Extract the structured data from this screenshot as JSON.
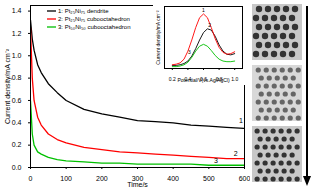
{
  "chart_data": [
    {
      "type": "line",
      "x_label": "Time/s",
      "y_label": "Current density/mA cm⁻²",
      "x": [
        0,
        5,
        10,
        20,
        30,
        50,
        75,
        100,
        150,
        200,
        250,
        300,
        350,
        400,
        450,
        500,
        550,
        600
      ],
      "series": [
        {
          "name": "1: Pt₂₅Ni₇₅ dendrite",
          "color": "#000000",
          "values": [
            1.32,
            1.15,
            1.05,
            0.92,
            0.85,
            0.75,
            0.67,
            0.6,
            0.52,
            0.48,
            0.45,
            0.42,
            0.41,
            0.4,
            0.38,
            0.37,
            0.36,
            0.35
          ]
        },
        {
          "name": "2: Pt₂₅Ni₇₅ cubooctahedron",
          "color": "#ff0000",
          "values": [
            1.25,
            0.8,
            0.6,
            0.45,
            0.38,
            0.3,
            0.25,
            0.22,
            0.18,
            0.16,
            0.14,
            0.13,
            0.12,
            0.11,
            0.1,
            0.09,
            0.08,
            0.08
          ]
        },
        {
          "name": "3: Pt₅₀Ni₅₀ cubooctahedron",
          "color": "#00c000",
          "values": [
            0.6,
            0.3,
            0.2,
            0.14,
            0.12,
            0.09,
            0.07,
            0.06,
            0.05,
            0.04,
            0.04,
            0.03,
            0.03,
            0.03,
            0.03,
            0.02,
            0.02,
            0.02
          ]
        }
      ],
      "xlim": [
        0,
        600
      ],
      "xticks": [
        0,
        100,
        200,
        300,
        400,
        500,
        600
      ],
      "ylim": [
        0,
        1.45
      ],
      "yticks": [
        {
          "value": 0,
          "label": "0.0"
        },
        {
          "value": 0.2,
          "label": "0.2"
        },
        {
          "value": 0.4,
          "label": "0.4"
        },
        {
          "value": 0.6,
          "label": "0.6"
        },
        {
          "value": 0.8,
          "label": "0.8"
        },
        {
          "value": 1,
          "label": "1.0"
        },
        {
          "value": 1.2,
          "label": "1.2"
        },
        {
          "value": 1.4,
          "label": "1.4"
        }
      ],
      "legend": "top-left",
      "annotations": [
        {
          "text": "1",
          "x": 590,
          "y": 0.42
        },
        {
          "text": "2",
          "x": 575,
          "y": 0.12
        },
        {
          "text": "3",
          "x": 520,
          "y": 0.06
        }
      ]
    },
    {
      "type": "line",
      "x_label": "Potential/V(vs.Ag/AgCl)",
      "y_label": "Current density/mA cm⁻²",
      "x": [
        0.2,
        0.25,
        0.3,
        0.35,
        0.4,
        0.45,
        0.5,
        0.55,
        0.6,
        0.65,
        0.7,
        0.75,
        0.8,
        0.85,
        0.9,
        0.95,
        1.0
      ],
      "series": [
        {
          "color": "#000000",
          "values": [
            0.5,
            0.5,
            0.6,
            0.8,
            1.2,
            2,
            3.2,
            4.6,
            5.8,
            6.4,
            6.2,
            5.2,
            3.8,
            2.8,
            2.3,
            2.2,
            2.4
          ]
        },
        {
          "color": "#ff0000",
          "values": [
            0.6,
            0.7,
            0.9,
            1.5,
            2.8,
            4.6,
            6.6,
            8.2,
            8.8,
            8.2,
            6.6,
            4.8,
            3.4,
            2.6,
            2.3,
            2.4,
            2.7
          ]
        },
        {
          "color": "#00c000",
          "values": [
            0.3,
            0.3,
            0.4,
            0.6,
            1,
            1.8,
            2.8,
            3.6,
            3.9,
            3.6,
            2.9,
            2.1,
            1.5,
            1.2,
            1.1,
            1.1,
            1.2
          ]
        }
      ],
      "xlim": [
        0.1,
        1.1
      ],
      "xticks": [
        0.2,
        0.4,
        0.6,
        0.8,
        {
          "value": 1,
          "label": "1.0"
        }
      ],
      "ylim": [
        0,
        10
      ],
      "yticks": [],
      "tick_labels": "x",
      "annotations": [
        {
          "text": "1",
          "x": 0.6,
          "y": 9.4
        },
        {
          "text": "2",
          "x": 0.68,
          "y": 7
        },
        {
          "text": "3",
          "x": 0.42,
          "y": 2.6
        }
      ]
    }
  ]
}
